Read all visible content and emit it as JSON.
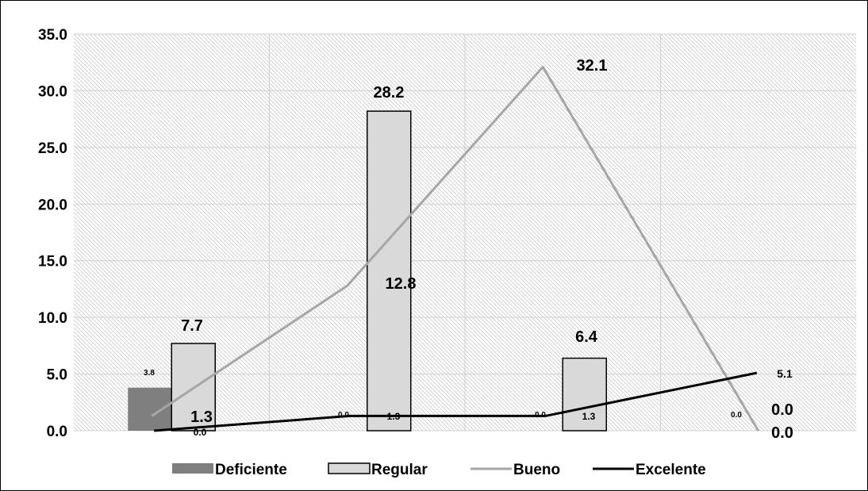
{
  "chart_data": {
    "type": "bar",
    "categories": [
      "",
      "",
      "",
      ""
    ],
    "ylim": [
      0,
      35
    ],
    "y_ticks": [
      "0.0",
      "5.0",
      "10.0",
      "15.0",
      "20.0",
      "25.0",
      "30.0",
      "35.0"
    ],
    "grid": true,
    "legend_position": "bottom",
    "series": [
      {
        "name": "Deficiente",
        "kind": "bar",
        "color": "#7f7f7f",
        "values": [
          3.8,
          0.0,
          0.0,
          0.0
        ],
        "labels": [
          "3.8",
          "0.0",
          "0.0",
          "0.0"
        ]
      },
      {
        "name": "Regular",
        "kind": "bar",
        "color": "#d9d9d9",
        "values": [
          7.7,
          28.2,
          6.4,
          0.0
        ],
        "labels": [
          "7.7",
          "28.2",
          "6.4",
          "0.0"
        ]
      },
      {
        "name": "Bueno",
        "kind": "line",
        "color": "#a6a6a6",
        "values": [
          1.3,
          12.8,
          32.1,
          0.0
        ],
        "labels": [
          "1.3",
          "12.8",
          "32.1",
          "0.0"
        ]
      },
      {
        "name": "Excelente",
        "kind": "line",
        "color": "#000000",
        "values": [
          0.0,
          1.3,
          1.3,
          5.1
        ],
        "labels": [
          "0.0",
          "1.3",
          "1.3",
          "5.1"
        ]
      }
    ]
  }
}
